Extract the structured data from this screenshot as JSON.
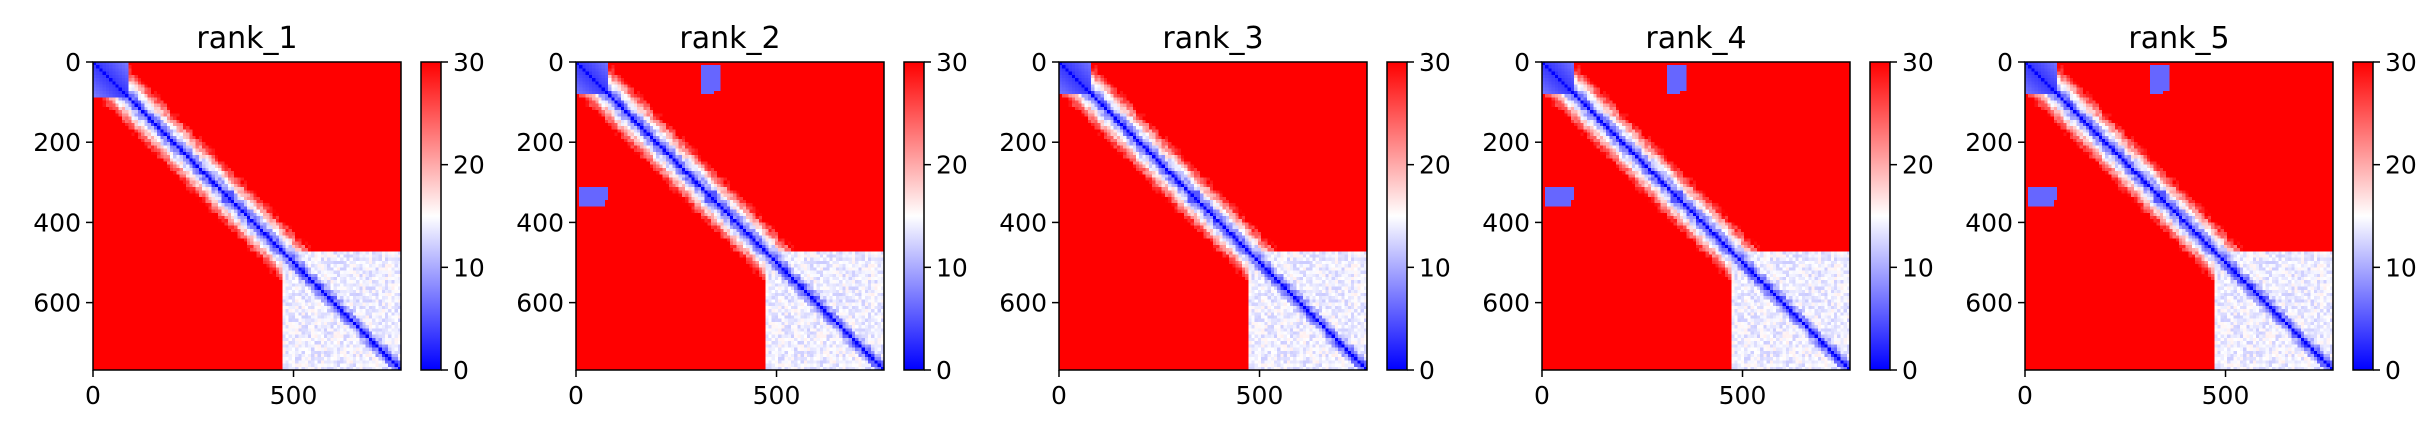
{
  "chart_data": [
    {
      "type": "heatmap",
      "title": "rank_1",
      "xlim": [
        0,
        768
      ],
      "ylim": [
        768,
        0
      ],
      "x_ticks": [
        "0",
        "500"
      ],
      "y_ticks": [
        "0",
        "200",
        "400",
        "600"
      ],
      "colorbar": {
        "min": 0,
        "max": 30,
        "ticks": [
          "0",
          "10",
          "20",
          "30"
        ],
        "colormap": "bwr"
      },
      "domain_boundary": 470,
      "intra_domain_blocks": [
        {
          "start": 0,
          "end": 90,
          "level": 3
        }
      ],
      "off_domain_blocks": [],
      "diagonal_knots": [
        {
          "pos": 335,
          "size": 14
        }
      ]
    },
    {
      "type": "heatmap",
      "title": "rank_2",
      "xlim": [
        0,
        768
      ],
      "ylim": [
        768,
        0
      ],
      "x_ticks": [
        "0",
        "500"
      ],
      "y_ticks": [
        "0",
        "200",
        "400",
        "600"
      ],
      "colorbar": {
        "min": 0,
        "max": 30,
        "ticks": [
          "0",
          "10",
          "20",
          "30"
        ],
        "colormap": "bwr"
      },
      "domain_boundary": 470,
      "intra_domain_blocks": [
        {
          "start": 0,
          "end": 80,
          "level": 3
        }
      ],
      "off_domain_blocks": [
        {
          "x": [
            320,
            360
          ],
          "y": [
            10,
            70
          ],
          "level": 6
        },
        {
          "x": [
            10,
            80
          ],
          "y": [
            310,
            345
          ],
          "level": 6
        }
      ],
      "diagonal_knots": [
        {
          "pos": 335,
          "size": 14
        }
      ]
    },
    {
      "type": "heatmap",
      "title": "rank_3",
      "xlim": [
        0,
        768
      ],
      "ylim": [
        768,
        0
      ],
      "x_ticks": [
        "0",
        "500"
      ],
      "y_ticks": [
        "0",
        "200",
        "400",
        "600"
      ],
      "colorbar": {
        "min": 0,
        "max": 30,
        "ticks": [
          "0",
          "10",
          "20",
          "30"
        ],
        "colormap": "bwr"
      },
      "domain_boundary": 470,
      "intra_domain_blocks": [
        {
          "start": 0,
          "end": 80,
          "level": 3
        }
      ],
      "off_domain_blocks": [],
      "diagonal_knots": [
        {
          "pos": 335,
          "size": 14
        }
      ]
    },
    {
      "type": "heatmap",
      "title": "rank_4",
      "xlim": [
        0,
        768
      ],
      "ylim": [
        768,
        0
      ],
      "x_ticks": [
        "0",
        "500"
      ],
      "y_ticks": [
        "0",
        "200",
        "400",
        "600"
      ],
      "colorbar": {
        "min": 0,
        "max": 30,
        "ticks": [
          "0",
          "10",
          "20",
          "30"
        ],
        "colormap": "bwr"
      },
      "domain_boundary": 470,
      "intra_domain_blocks": [
        {
          "start": 0,
          "end": 80,
          "level": 3
        }
      ],
      "off_domain_blocks": [
        {
          "x": [
            320,
            360
          ],
          "y": [
            10,
            70
          ],
          "level": 6
        },
        {
          "x": [
            10,
            80
          ],
          "y": [
            310,
            345
          ],
          "level": 6
        }
      ],
      "diagonal_knots": [
        {
          "pos": 335,
          "size": 14
        }
      ]
    },
    {
      "type": "heatmap",
      "title": "rank_5",
      "xlim": [
        0,
        768
      ],
      "ylim": [
        768,
        0
      ],
      "x_ticks": [
        "0",
        "500"
      ],
      "y_ticks": [
        "0",
        "200",
        "400",
        "600"
      ],
      "colorbar": {
        "min": 0,
        "max": 30,
        "ticks": [
          "0",
          "10",
          "20",
          "30"
        ],
        "colormap": "bwr"
      },
      "domain_boundary": 470,
      "intra_domain_blocks": [
        {
          "start": 0,
          "end": 80,
          "level": 3
        }
      ],
      "off_domain_blocks": [
        {
          "x": [
            320,
            360
          ],
          "y": [
            10,
            70
          ],
          "level": 6
        },
        {
          "x": [
            10,
            80
          ],
          "y": [
            310,
            345
          ],
          "level": 6
        }
      ],
      "diagonal_knots": [
        {
          "pos": 335,
          "size": 14
        }
      ]
    }
  ]
}
